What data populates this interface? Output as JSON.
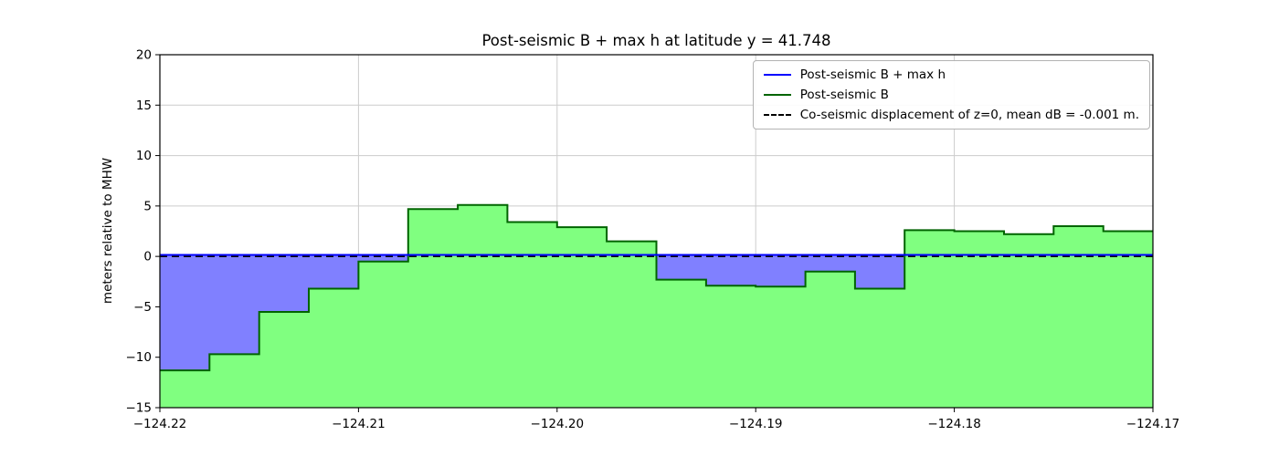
{
  "chart_data": {
    "type": "area",
    "title": "Post-seismic B + max h at latitude y = 41.748",
    "xlabel": "",
    "ylabel": "meters relative to MHW",
    "xlim": [
      -124.22,
      -124.17
    ],
    "ylim": [
      -15,
      20
    ],
    "grid": true,
    "legend_position": "upper right",
    "colors": {
      "background": "#ffffff",
      "grid": "#cccccc",
      "frame": "#000000",
      "green_line": "#006400",
      "green_fill": "#80ff80",
      "blue_line": "#0000ff",
      "blue_fill": "#8080ff",
      "dashed_line": "#000000"
    },
    "xticks": [
      {
        "v": -124.22,
        "label": "−124.22"
      },
      {
        "v": -124.21,
        "label": "−124.21"
      },
      {
        "v": -124.2,
        "label": "−124.20"
      },
      {
        "v": -124.19,
        "label": "−124.19"
      },
      {
        "v": -124.18,
        "label": "−124.18"
      },
      {
        "v": -124.17,
        "label": "−124.17"
      }
    ],
    "yticks": [
      {
        "v": -15,
        "label": "−15"
      },
      {
        "v": -10,
        "label": "−10"
      },
      {
        "v": -5,
        "label": "−5"
      },
      {
        "v": 0,
        "label": "0"
      },
      {
        "v": 5,
        "label": "5"
      },
      {
        "v": 10,
        "label": "10"
      },
      {
        "v": 15,
        "label": "15"
      },
      {
        "v": 20,
        "label": "20"
      }
    ],
    "series": [
      {
        "name": "Post-seismic B + max h",
        "type": "hline",
        "style": "solid",
        "color": "#0000ff",
        "y": 0.15
      },
      {
        "name": "Post-seismic B",
        "type": "step-area",
        "line_color": "#006400",
        "fill_color": "#80ff80",
        "x_edges": [
          -124.22,
          -124.2175,
          -124.215,
          -124.2125,
          -124.21,
          -124.2075,
          -124.205,
          -124.2025,
          -124.2,
          -124.1975,
          -124.195,
          -124.1925,
          -124.19,
          -124.1875,
          -124.185,
          -124.1825,
          -124.18,
          -124.1775,
          -124.175,
          -124.1725,
          -124.17
        ],
        "values": [
          -11.3,
          -9.7,
          -5.5,
          -3.2,
          -0.5,
          4.7,
          5.1,
          3.4,
          2.9,
          1.5,
          -2.3,
          -2.9,
          -3.0,
          -1.5,
          -3.2,
          2.6,
          2.5,
          2.2,
          3.0,
          2.5
        ]
      },
      {
        "name": "Co-seismic displacement of z=0",
        "type": "hline",
        "style": "dashed",
        "color": "#000000",
        "y": 0
      }
    ],
    "fill_between": {
      "between": [
        "Post-seismic B + max h",
        "Post-seismic B"
      ],
      "color": "#8080ff"
    },
    "legend": [
      {
        "label": "Post-seismic B + max h",
        "color": "#0000ff",
        "dashed": false
      },
      {
        "label": "Post-seismic B",
        "color": "#006400",
        "dashed": false
      },
      {
        "label": "Co-seismic displacement of z=0, mean dB = -0.001 m.",
        "color": "#000000",
        "dashed": true
      }
    ]
  }
}
